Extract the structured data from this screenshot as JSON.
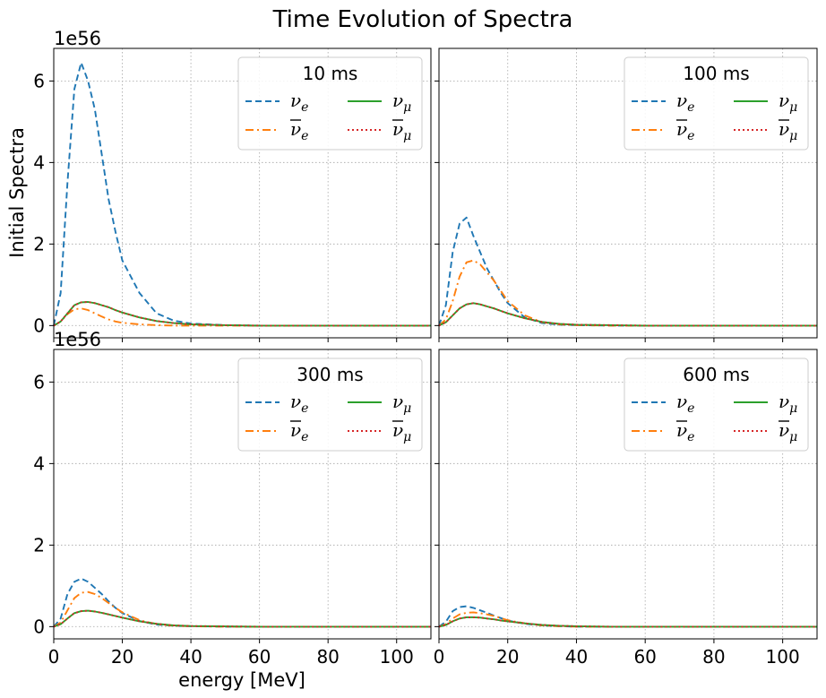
{
  "figure": {
    "title": "Time Evolution of Spectra",
    "ylabel": "Initial Spectra",
    "xlabel": "energy [MeV]",
    "offset_label": "1e56"
  },
  "legend_labels": [
    "ν_e",
    "ν̄_e",
    "ν_μ",
    "ν̄_μ"
  ],
  "colors": {
    "nu_e": "#1f77b4",
    "nubar_e": "#ff7f0e",
    "nu_mu": "#2ca02c",
    "nubar_mu": "#d62728",
    "grid": "#b0b0b0"
  },
  "chart_data": [
    {
      "type": "line",
      "title": "10 ms",
      "xlim": [
        0,
        110
      ],
      "ylim": [
        -0.3,
        6.8
      ],
      "y_multiplier": "1e56",
      "xticks": [
        0,
        20,
        40,
        60,
        80,
        100
      ],
      "yticks": [
        0,
        2,
        4,
        6
      ],
      "grid": true,
      "legend_position": "top-right",
      "x": [
        0,
        2,
        4,
        6,
        8,
        10,
        12,
        14,
        16,
        18,
        20,
        25,
        30,
        35,
        40,
        50,
        60,
        80,
        110
      ],
      "series": [
        {
          "name": "ν_e",
          "style": "dashed",
          "values": [
            0,
            0.8,
            3.5,
            5.8,
            6.45,
            6.0,
            5.3,
            4.2,
            3.1,
            2.3,
            1.6,
            0.8,
            0.3,
            0.12,
            0.05,
            0.01,
            0,
            0,
            0
          ]
        },
        {
          "name": "ν̄_e",
          "style": "dashdot",
          "values": [
            0,
            0.1,
            0.28,
            0.4,
            0.42,
            0.38,
            0.3,
            0.22,
            0.15,
            0.1,
            0.07,
            0.03,
            0.01,
            0,
            0,
            0,
            0,
            0,
            0
          ]
        },
        {
          "name": "ν_μ",
          "style": "solid",
          "values": [
            0,
            0.1,
            0.3,
            0.5,
            0.57,
            0.58,
            0.55,
            0.5,
            0.45,
            0.38,
            0.32,
            0.2,
            0.11,
            0.06,
            0.03,
            0.01,
            0,
            0,
            0
          ]
        },
        {
          "name": "ν̄_μ",
          "style": "dotted",
          "values": [
            0,
            0.1,
            0.3,
            0.5,
            0.57,
            0.58,
            0.55,
            0.5,
            0.45,
            0.38,
            0.32,
            0.2,
            0.11,
            0.06,
            0.03,
            0.01,
            0,
            0,
            0
          ]
        }
      ]
    },
    {
      "type": "line",
      "title": "100 ms",
      "xlim": [
        0,
        110
      ],
      "ylim": [
        -0.3,
        6.8
      ],
      "y_multiplier": "1e56",
      "xticks": [
        0,
        20,
        40,
        60,
        80,
        100
      ],
      "yticks": [
        0,
        2,
        4,
        6
      ],
      "grid": true,
      "legend_position": "top-right",
      "x": [
        0,
        2,
        4,
        6,
        8,
        10,
        12,
        14,
        16,
        18,
        20,
        25,
        30,
        35,
        40,
        50,
        60,
        80,
        110
      ],
      "series": [
        {
          "name": "ν_e",
          "style": "dashed",
          "values": [
            0,
            0.5,
            1.8,
            2.5,
            2.65,
            2.2,
            1.8,
            1.4,
            1.1,
            0.8,
            0.55,
            0.2,
            0.06,
            0.02,
            0.01,
            0,
            0,
            0,
            0
          ]
        },
        {
          "name": "ν̄_e",
          "style": "dashdot",
          "values": [
            0,
            0.15,
            0.6,
            1.2,
            1.55,
            1.6,
            1.5,
            1.3,
            1.1,
            0.85,
            0.6,
            0.25,
            0.08,
            0.03,
            0.01,
            0,
            0,
            0,
            0
          ]
        },
        {
          "name": "ν_μ",
          "style": "solid",
          "values": [
            0,
            0.08,
            0.25,
            0.42,
            0.52,
            0.55,
            0.52,
            0.47,
            0.42,
            0.36,
            0.3,
            0.18,
            0.09,
            0.04,
            0.02,
            0.01,
            0,
            0,
            0
          ]
        },
        {
          "name": "ν̄_μ",
          "style": "dotted",
          "values": [
            0,
            0.08,
            0.25,
            0.42,
            0.52,
            0.55,
            0.52,
            0.47,
            0.42,
            0.36,
            0.3,
            0.18,
            0.09,
            0.04,
            0.02,
            0.01,
            0,
            0,
            0
          ]
        }
      ]
    },
    {
      "type": "line",
      "title": "300 ms",
      "xlim": [
        0,
        110
      ],
      "ylim": [
        -0.3,
        6.8
      ],
      "y_multiplier": "1e56",
      "xticks": [
        0,
        20,
        40,
        60,
        80,
        100
      ],
      "yticks": [
        0,
        2,
        4,
        6
      ],
      "grid": true,
      "legend_position": "top-right",
      "x": [
        0,
        2,
        4,
        6,
        8,
        10,
        12,
        14,
        16,
        18,
        20,
        25,
        30,
        35,
        40,
        50,
        60,
        80,
        110
      ],
      "series": [
        {
          "name": "ν_e",
          "style": "dashed",
          "values": [
            0,
            0.2,
            0.8,
            1.1,
            1.18,
            1.1,
            0.95,
            0.8,
            0.62,
            0.46,
            0.33,
            0.14,
            0.05,
            0.02,
            0.01,
            0,
            0,
            0,
            0
          ]
        },
        {
          "name": "ν̄_e",
          "style": "dashdot",
          "values": [
            0,
            0.1,
            0.4,
            0.7,
            0.83,
            0.85,
            0.8,
            0.7,
            0.58,
            0.46,
            0.35,
            0.16,
            0.06,
            0.02,
            0.01,
            0,
            0,
            0,
            0
          ]
        },
        {
          "name": "ν_μ",
          "style": "solid",
          "values": [
            0,
            0.06,
            0.2,
            0.33,
            0.38,
            0.39,
            0.37,
            0.34,
            0.3,
            0.26,
            0.22,
            0.13,
            0.07,
            0.03,
            0.015,
            0.005,
            0,
            0,
            0
          ]
        },
        {
          "name": "ν̄_μ",
          "style": "dotted",
          "values": [
            0,
            0.06,
            0.2,
            0.33,
            0.38,
            0.39,
            0.37,
            0.34,
            0.3,
            0.26,
            0.22,
            0.13,
            0.07,
            0.03,
            0.015,
            0.005,
            0,
            0,
            0
          ]
        }
      ]
    },
    {
      "type": "line",
      "title": "600 ms",
      "xlim": [
        0,
        110
      ],
      "ylim": [
        -0.3,
        6.8
      ],
      "y_multiplier": "1e56",
      "xticks": [
        0,
        20,
        40,
        60,
        80,
        100
      ],
      "yticks": [
        0,
        2,
        4,
        6
      ],
      "grid": true,
      "legend_position": "top-right",
      "x": [
        0,
        2,
        4,
        6,
        8,
        10,
        12,
        14,
        16,
        18,
        20,
        25,
        30,
        35,
        40,
        50,
        60,
        80,
        110
      ],
      "series": [
        {
          "name": "ν_e",
          "style": "dashed",
          "values": [
            0,
            0.12,
            0.38,
            0.48,
            0.5,
            0.46,
            0.4,
            0.34,
            0.27,
            0.21,
            0.15,
            0.07,
            0.03,
            0.01,
            0,
            0,
            0,
            0,
            0
          ]
        },
        {
          "name": "ν̄_e",
          "style": "dashdot",
          "values": [
            0,
            0.06,
            0.2,
            0.3,
            0.34,
            0.35,
            0.33,
            0.3,
            0.26,
            0.21,
            0.16,
            0.08,
            0.03,
            0.01,
            0,
            0,
            0,
            0,
            0
          ]
        },
        {
          "name": "ν_μ",
          "style": "solid",
          "values": [
            0,
            0.04,
            0.13,
            0.2,
            0.23,
            0.23,
            0.22,
            0.2,
            0.18,
            0.15,
            0.13,
            0.08,
            0.04,
            0.02,
            0.01,
            0,
            0,
            0,
            0
          ]
        },
        {
          "name": "ν̄_μ",
          "style": "dotted",
          "values": [
            0,
            0.04,
            0.13,
            0.2,
            0.23,
            0.23,
            0.22,
            0.2,
            0.18,
            0.15,
            0.13,
            0.08,
            0.04,
            0.02,
            0.01,
            0,
            0,
            0,
            0
          ]
        }
      ]
    }
  ]
}
